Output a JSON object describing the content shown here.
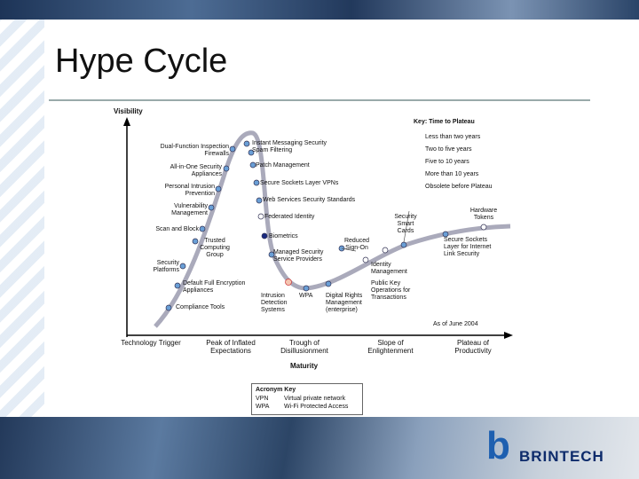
{
  "slide": {
    "title": "Hype Cycle",
    "logo": "BRINTECH"
  },
  "diagram": {
    "y_axis": "Visibility",
    "x_axis": "Maturity",
    "date": "As of June 2004",
    "phases": [
      "Technology Trigger",
      "Peak of Inflated Expectations",
      "Trough of Disillusionment",
      "Slope of Enlightenment",
      "Plateau of Productivity"
    ],
    "key": {
      "title": "Key: Time to Plateau",
      "items": [
        "Less than two years",
        "Two to five years",
        "Five to 10 years",
        "More than 10 years",
        "Obsolete before Plateau"
      ]
    },
    "technologies": [
      "Dual-Function Inspection Firewalls",
      "All-in-One Security Appliances",
      "Personal Intrusion Prevention",
      "Vulnerability Management",
      "Scan and Block",
      "Trusted Computing Group",
      "Security Platforms",
      "Default Full Encryption Appliances",
      "Compliance Tools",
      "Instant Messaging Security Spam Filtering",
      "Patch Management",
      "Secure Sockets Layer VPNs",
      "Web Services Security Standards",
      "Federated Identity",
      "Biometrics",
      "Managed Security Service Providers",
      "Intrusion Detection Systems",
      "WPA",
      "Digital Rights Management (enterprise)",
      "Reduced Sign-On",
      "Identity Management",
      "Public Key Operations for Transactions",
      "Security Smart Cards",
      "Hardware Tokens",
      "Secure Sockets Layer for Internet Link Security"
    ],
    "acronyms": {
      "title": "Acronym Key",
      "items": [
        {
          "term": "VPN",
          "meaning": "Virtual private network"
        },
        {
          "term": "WPA",
          "meaning": "Wi-Fi Protected Access"
        }
      ]
    }
  }
}
